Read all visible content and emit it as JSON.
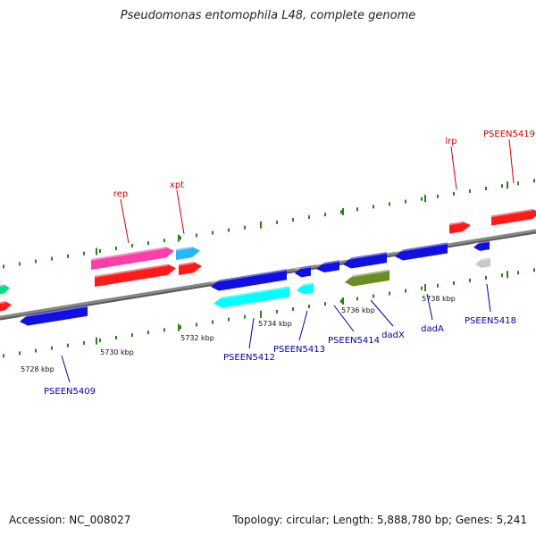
{
  "title": "Pseudomonas entomophila L48, complete genome",
  "footer": {
    "accession": "Accession: NC_008027",
    "summary": "Topology: circular; Length: 5,888,780 bp; Genes: 5,241"
  },
  "colors": {
    "backbone": "#888888",
    "tick_minor": "#2e7d1a",
    "label_forward": "#cc0000",
    "label_reverse": "#0000aa",
    "leader_forward": "#cc0000",
    "leader_reverse": "#0000aa"
  },
  "ticks": [
    {
      "label": "5728 kbp"
    },
    {
      "label": "5730 kbp"
    },
    {
      "label": "5732 kbp"
    },
    {
      "label": "5734 kbp"
    },
    {
      "label": "5736 kbp"
    },
    {
      "label": "5738 kbp"
    }
  ],
  "gene_labels": [
    {
      "text": "rep",
      "strand": "forward"
    },
    {
      "text": "xpt",
      "strand": "forward"
    },
    {
      "text": "lrp",
      "strand": "forward"
    },
    {
      "text": "PSEEN5419",
      "strand": "forward"
    },
    {
      "text": "PSEEN5409",
      "strand": "reverse"
    },
    {
      "text": "PSEEN5412",
      "strand": "reverse"
    },
    {
      "text": "PSEEN5413",
      "strand": "reverse"
    },
    {
      "text": "PSEEN5414",
      "strand": "reverse"
    },
    {
      "text": "dadX",
      "strand": "reverse"
    },
    {
      "text": "dadA",
      "strand": "reverse"
    },
    {
      "text": "PSEEN5418",
      "strand": "reverse"
    }
  ],
  "genes": [
    {
      "name": "gene-partial-left-green",
      "color": "#00e08a"
    },
    {
      "name": "gene-partial-left-red",
      "color": "#ff1a1a"
    },
    {
      "name": "gene-rep-top",
      "color": "#ff3fa8"
    },
    {
      "name": "gene-rep-bottom",
      "color": "#ff1a1a"
    },
    {
      "name": "gene-xpt-top",
      "color": "#29b6f6"
    },
    {
      "name": "gene-xpt-bottom",
      "color": "#ff1a1a"
    },
    {
      "name": "gene-pseen5409",
      "color": "#1010e0"
    },
    {
      "name": "gene-pseen5412-top",
      "color": "#1010e0"
    },
    {
      "name": "gene-pseen5412-bottom",
      "color": "#00ffff"
    },
    {
      "name": "gene-pseen5413-top",
      "color": "#1010e0"
    },
    {
      "name": "gene-pseen5413-bottom",
      "color": "#00ffff"
    },
    {
      "name": "gene-pseen5414",
      "color": "#1010e0"
    },
    {
      "name": "gene-dadx-top",
      "color": "#1010e0"
    },
    {
      "name": "gene-dadx-bottom",
      "color": "#6b8e23"
    },
    {
      "name": "gene-dada",
      "color": "#1010e0"
    },
    {
      "name": "gene-lrp",
      "color": "#ff1a1a"
    },
    {
      "name": "gene-pseen5418-top",
      "color": "#1010e0"
    },
    {
      "name": "gene-pseen5418-bottom",
      "color": "#c8c8c8"
    },
    {
      "name": "gene-pseen5419",
      "color": "#ff1a1a"
    }
  ]
}
